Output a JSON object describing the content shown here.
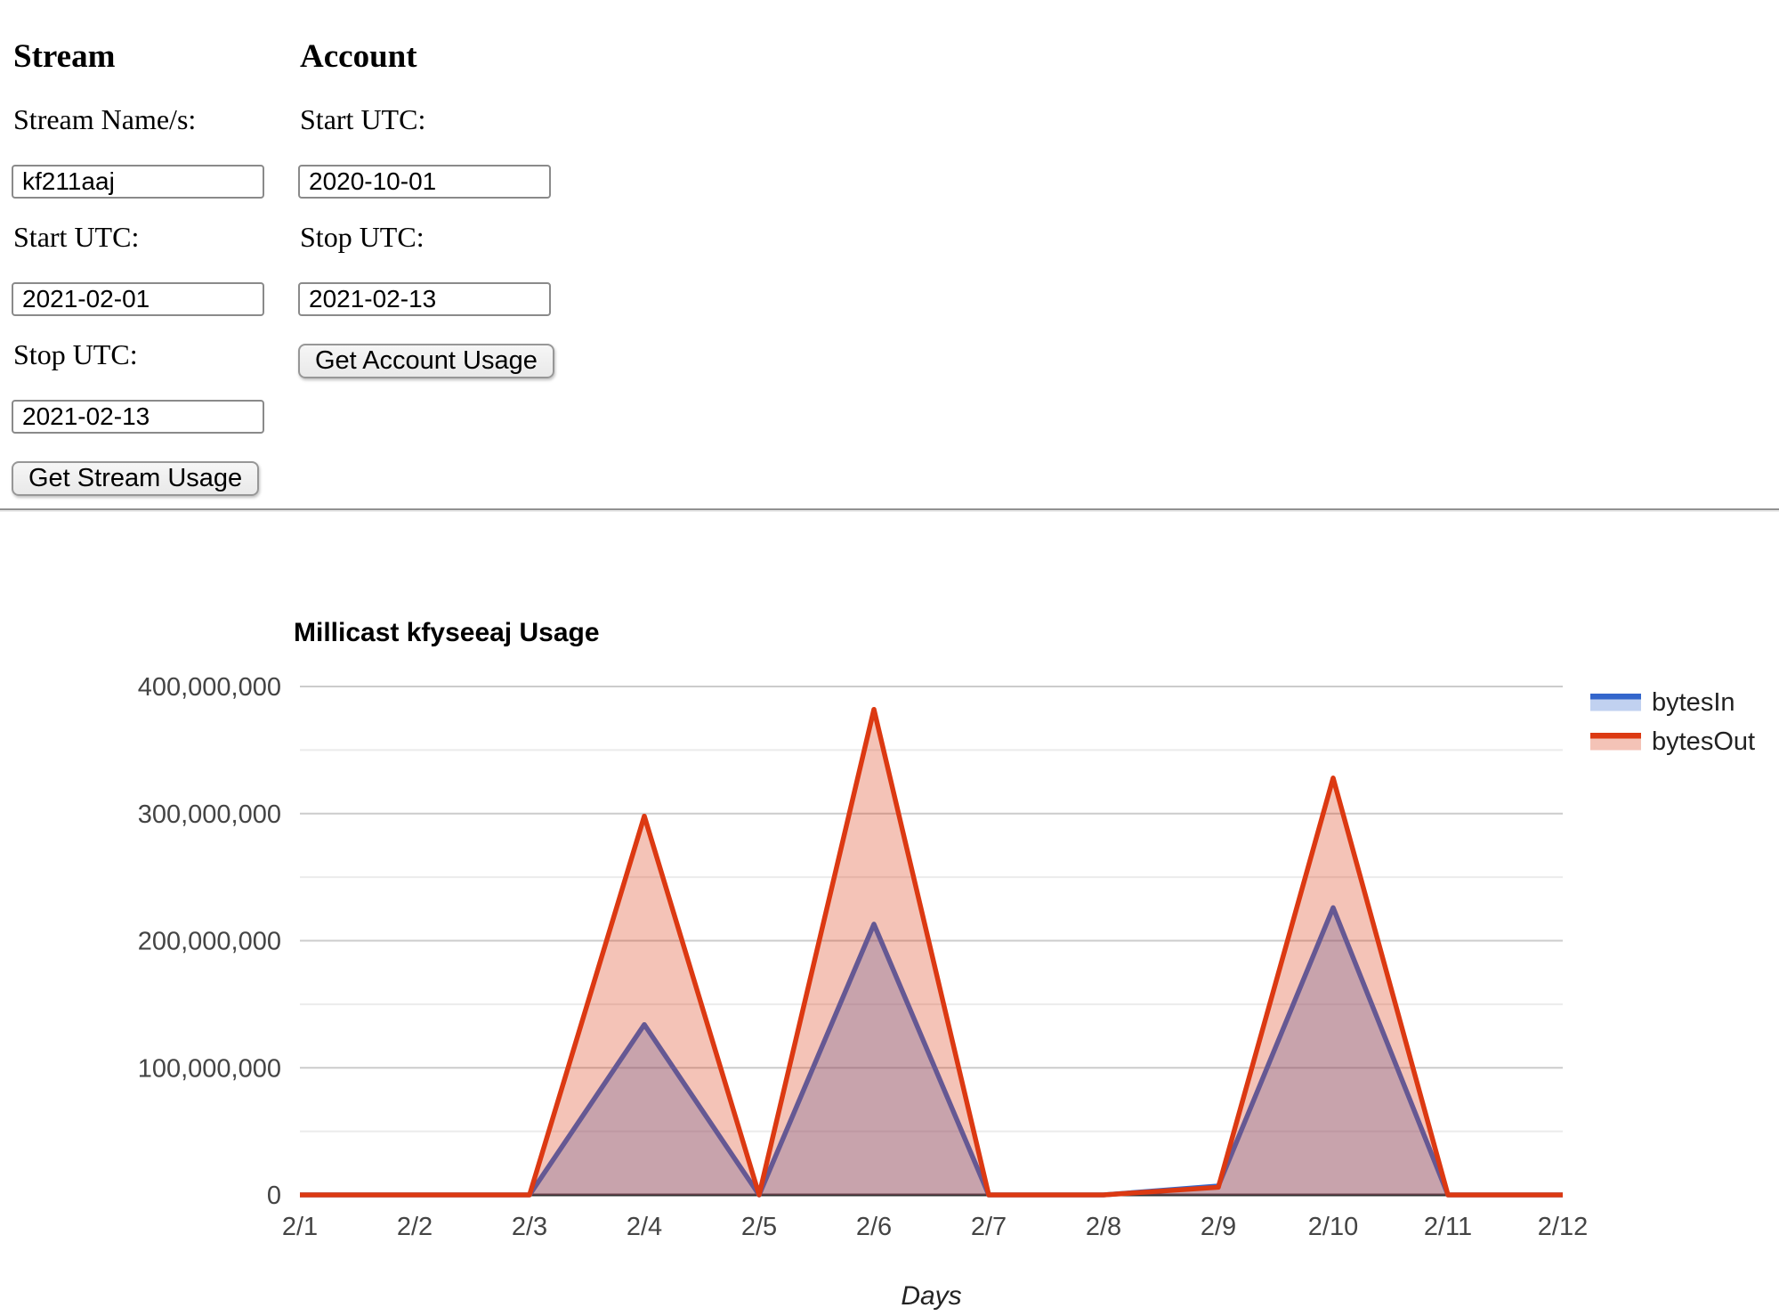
{
  "form": {
    "stream": {
      "heading": "Stream",
      "fields": [
        {
          "label": "Stream Name/s:",
          "value": "kf211aaj"
        },
        {
          "label": "Start UTC:",
          "value": "2021-02-01"
        },
        {
          "label": "Stop UTC:",
          "value": "2021-02-13"
        }
      ],
      "button_label": "Get Stream Usage"
    },
    "account": {
      "heading": "Account",
      "fields": [
        {
          "label": "Start UTC:",
          "value": "2020-10-01"
        },
        {
          "label": "Stop UTC:",
          "value": "2021-02-13"
        }
      ],
      "button_label": "Get Account Usage"
    }
  },
  "chart_data": {
    "type": "area",
    "title": "Millicast kfyseeaj Usage",
    "xlabel": "Days",
    "ylabel": "",
    "categories": [
      "2/1",
      "2/2",
      "2/3",
      "2/4",
      "2/5",
      "2/6",
      "2/7",
      "2/8",
      "2/9",
      "2/10",
      "2/11",
      "2/12"
    ],
    "series": [
      {
        "name": "bytesIn",
        "color": "#3366cc",
        "values": [
          0,
          0,
          0,
          134000000,
          0,
          213000000,
          0,
          0,
          7000000,
          226000000,
          0,
          0
        ]
      },
      {
        "name": "bytesOut",
        "color": "#dc3912",
        "values": [
          0,
          0,
          0,
          298000000,
          0,
          382000000,
          0,
          0,
          6000000,
          328000000,
          0,
          0
        ]
      }
    ],
    "ylim": [
      0,
      400000000
    ],
    "ytick_interval": 100000000,
    "ytick_labels": [
      "0",
      "100,000,000",
      "200,000,000",
      "300,000,000",
      "400,000,000"
    ],
    "grid": true,
    "minor_grid": true,
    "legend_position": "right",
    "colors": {
      "major_grid": "#cccccc",
      "minor_grid": "#ebebeb",
      "baseline": "#333333",
      "axis_label": "#444444",
      "legend_text": "#222222",
      "title_text": "#000000",
      "area_opacity": 0.3
    }
  }
}
